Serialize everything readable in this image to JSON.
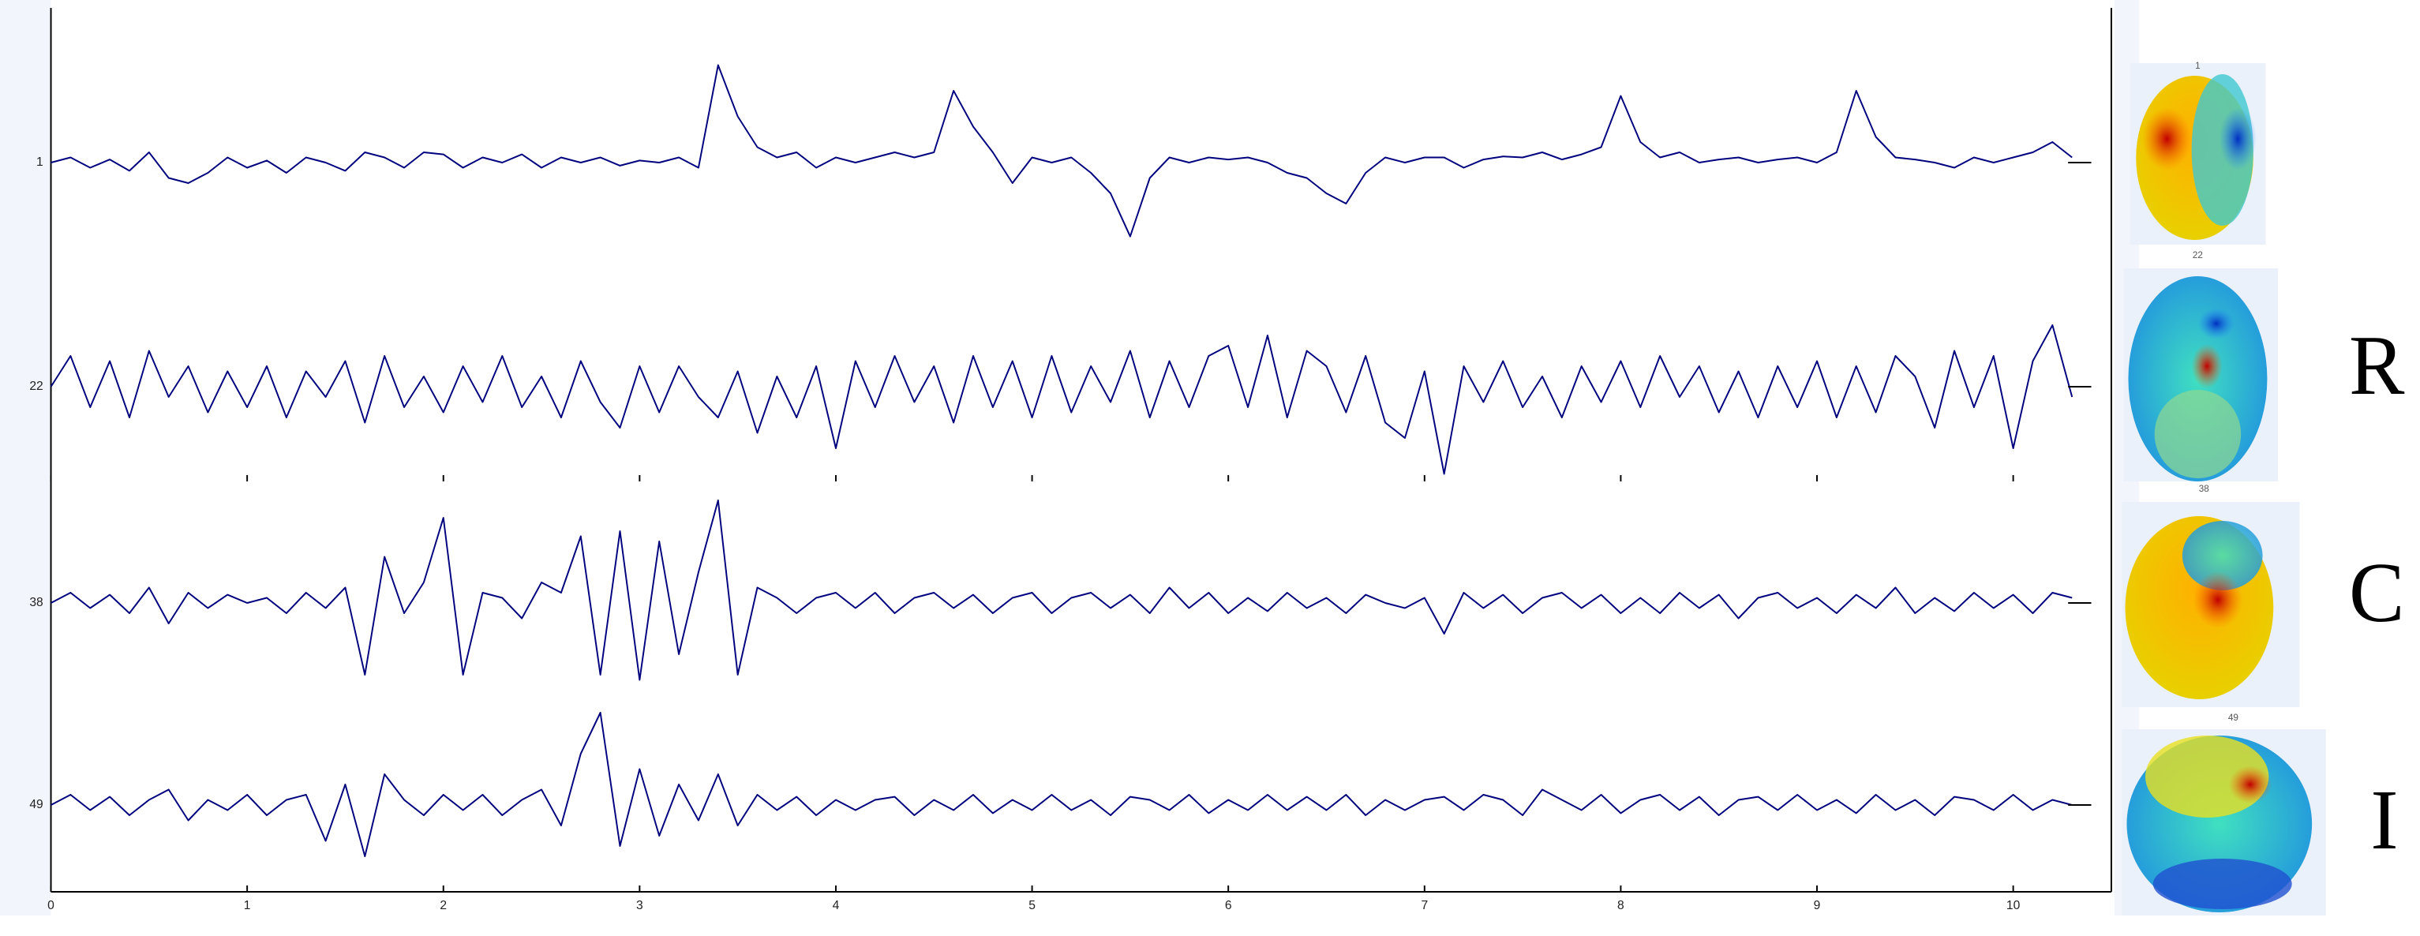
{
  "chart_data": {
    "type": "line",
    "x": [
      0,
      0.1,
      0.2,
      0.3,
      0.4,
      0.5,
      0.6,
      0.7,
      0.8,
      0.9,
      1,
      1.1,
      1.2,
      1.3,
      1.4,
      1.5,
      1.6,
      1.7,
      1.8,
      1.9,
      2,
      2.1,
      2.2,
      2.3,
      2.4,
      2.5,
      2.6,
      2.7,
      2.8,
      2.9,
      3,
      3.1,
      3.2,
      3.3,
      3.4,
      3.5,
      3.6,
      3.7,
      3.8,
      3.9,
      4,
      4.1,
      4.2,
      4.3,
      4.4,
      4.5,
      4.6,
      4.7,
      4.8,
      4.9,
      5,
      5.1,
      5.2,
      5.3,
      5.4,
      5.5,
      5.6,
      5.7,
      5.8,
      5.9,
      6,
      6.1,
      6.2,
      6.3,
      6.4,
      6.5,
      6.6,
      6.7,
      6.8,
      6.9,
      7,
      7.1,
      7.2,
      7.3,
      7.4,
      7.5,
      7.6,
      7.7,
      7.8,
      7.9,
      8,
      8.1,
      8.2,
      8.3,
      8.4,
      8.5,
      8.6,
      8.7,
      8.8,
      8.9,
      9,
      9.1,
      9.2,
      9.3,
      9.4,
      9.5,
      9.6,
      9.7,
      9.8,
      9.9,
      10,
      10.1,
      10.2,
      10.3
    ],
    "series": [
      {
        "name": "1",
        "color": "#00007f",
        "values": [
          0,
          0.05,
          -0.05,
          0.03,
          -0.08,
          0.1,
          -0.15,
          -0.2,
          -0.1,
          0.05,
          -0.05,
          0.02,
          -0.1,
          0.05,
          0,
          -0.08,
          0.1,
          0.05,
          -0.05,
          0.1,
          0.08,
          -0.05,
          0.05,
          0,
          0.08,
          -0.05,
          0.05,
          0,
          0.05,
          -0.03,
          0.02,
          0,
          0.05,
          -0.05,
          0.95,
          0.45,
          0.15,
          0.05,
          0.1,
          -0.05,
          0.05,
          0,
          0.05,
          0.1,
          0.05,
          0.1,
          0.7,
          0.35,
          0.1,
          -0.2,
          0.05,
          0,
          0.05,
          -0.1,
          -0.3,
          -0.72,
          -0.15,
          0.05,
          0,
          0.05,
          0.03,
          0.05,
          0,
          -0.1,
          -0.15,
          -0.3,
          -0.4,
          -0.1,
          0.05,
          0,
          0.05,
          0.05,
          -0.05,
          0.03,
          0.06,
          0.05,
          0.1,
          0.03,
          0.08,
          0.15,
          0.65,
          0.2,
          0.05,
          0.1,
          0,
          0.03,
          0.05,
          0,
          0.03,
          0.05,
          0,
          0.1,
          0.7,
          0.25,
          0.05,
          0.03,
          0,
          -0.05,
          0.05,
          0,
          0.05,
          0.1,
          0.2,
          0.05
        ]
      },
      {
        "name": "22",
        "color": "#00007f",
        "values": [
          0,
          0.3,
          -0.2,
          0.25,
          -0.3,
          0.35,
          -0.1,
          0.2,
          -0.25,
          0.15,
          -0.2,
          0.2,
          -0.3,
          0.15,
          -0.1,
          0.25,
          -0.35,
          0.3,
          -0.2,
          0.1,
          -0.25,
          0.2,
          -0.15,
          0.3,
          -0.2,
          0.1,
          -0.3,
          0.25,
          -0.15,
          -0.4,
          0.2,
          -0.25,
          0.2,
          -0.1,
          -0.3,
          0.15,
          -0.45,
          0.1,
          -0.3,
          0.2,
          -0.6,
          0.25,
          -0.2,
          0.3,
          -0.15,
          0.2,
          -0.35,
          0.3,
          -0.2,
          0.25,
          -0.3,
          0.3,
          -0.25,
          0.2,
          -0.15,
          0.35,
          -0.3,
          0.25,
          -0.2,
          0.3,
          0.4,
          -0.2,
          0.5,
          -0.3,
          0.35,
          0.2,
          -0.25,
          0.3,
          -0.35,
          -0.5,
          0.15,
          -0.85,
          0.2,
          -0.15,
          0.25,
          -0.2,
          0.1,
          -0.3,
          0.2,
          -0.15,
          0.25,
          -0.2,
          0.3,
          -0.1,
          0.2,
          -0.25,
          0.15,
          -0.3,
          0.2,
          -0.2,
          0.25,
          -0.3,
          0.2,
          -0.25,
          0.3,
          0.1,
          -0.4,
          0.35,
          -0.2,
          0.3,
          -0.6,
          0.25,
          0.6,
          -0.1
        ]
      },
      {
        "name": "38",
        "color": "#00007f",
        "values": [
          0,
          0.1,
          -0.05,
          0.08,
          -0.1,
          0.15,
          -0.2,
          0.1,
          -0.05,
          0.08,
          0,
          0.05,
          -0.1,
          0.1,
          -0.05,
          0.15,
          -0.7,
          0.45,
          -0.1,
          0.2,
          0.83,
          -0.7,
          0.1,
          0.05,
          -0.15,
          0.2,
          0.1,
          0.65,
          -0.7,
          0.7,
          -0.75,
          0.6,
          -0.5,
          0.3,
          1.0,
          -0.7,
          0.15,
          0.05,
          -0.1,
          0.05,
          0.1,
          -0.05,
          0.1,
          -0.1,
          0.05,
          0.1,
          -0.05,
          0.08,
          -0.1,
          0.05,
          0.1,
          -0.1,
          0.05,
          0.1,
          -0.05,
          0.08,
          -0.1,
          0.15,
          -0.05,
          0.1,
          -0.1,
          0.05,
          -0.08,
          0.1,
          -0.05,
          0.05,
          -0.1,
          0.08,
          0,
          -0.05,
          0.05,
          -0.3,
          0.1,
          -0.05,
          0.08,
          -0.1,
          0.05,
          0.1,
          -0.05,
          0.08,
          -0.1,
          0.05,
          -0.1,
          0.1,
          -0.05,
          0.08,
          -0.15,
          0.05,
          0.1,
          -0.05,
          0.05,
          -0.1,
          0.08,
          -0.05,
          0.15,
          -0.1,
          0.05,
          -0.08,
          0.1,
          -0.05,
          0.08,
          -0.1,
          0.1,
          0.05
        ]
      },
      {
        "name": "49",
        "color": "#00007f",
        "values": [
          0,
          0.1,
          -0.05,
          0.08,
          -0.1,
          0.05,
          0.15,
          -0.15,
          0.05,
          -0.05,
          0.1,
          -0.1,
          0.05,
          0.1,
          -0.35,
          0.2,
          -0.5,
          0.3,
          0.05,
          -0.1,
          0.1,
          -0.05,
          0.1,
          -0.1,
          0.05,
          0.15,
          -0.2,
          0.5,
          0.9,
          -0.4,
          0.35,
          -0.3,
          0.2,
          -0.15,
          0.3,
          -0.2,
          0.1,
          -0.05,
          0.08,
          -0.1,
          0.05,
          -0.05,
          0.05,
          0.08,
          -0.1,
          0.05,
          -0.05,
          0.1,
          -0.08,
          0.05,
          -0.05,
          0.1,
          -0.05,
          0.05,
          -0.1,
          0.08,
          0.05,
          -0.05,
          0.1,
          -0.08,
          0.05,
          -0.05,
          0.1,
          -0.05,
          0.08,
          -0.05,
          0.1,
          -0.1,
          0.05,
          -0.05,
          0.05,
          0.08,
          -0.05,
          0.1,
          0.05,
          -0.1,
          0.15,
          0.05,
          -0.05,
          0.1,
          -0.08,
          0.05,
          0.1,
          -0.05,
          0.08,
          -0.1,
          0.05,
          0.08,
          -0.05,
          0.1,
          -0.05,
          0.05,
          -0.08,
          0.1,
          -0.05,
          0.05,
          -0.1,
          0.08,
          0.05,
          -0.05,
          0.1,
          -0.05,
          0.05,
          0
        ]
      }
    ],
    "xlim": [
      0,
      10.5
    ],
    "xticks": [
      0,
      1,
      2,
      3,
      4,
      5,
      6,
      7,
      8,
      9,
      10
    ],
    "ylim": [
      -1,
      1
    ],
    "annotations": [
      "R",
      "C",
      "I"
    ]
  }
}
